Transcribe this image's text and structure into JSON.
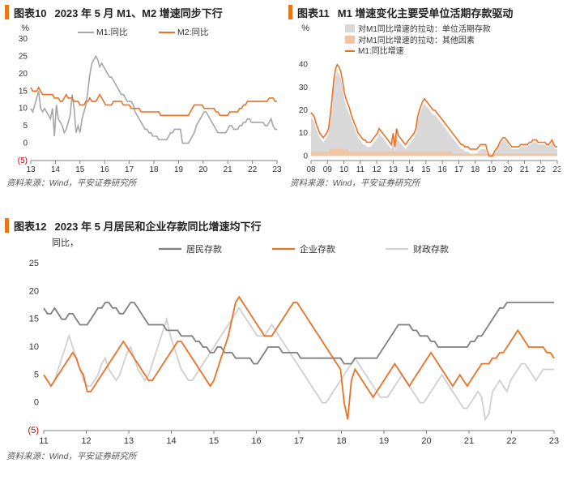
{
  "colors": {
    "orange": "#ea7125",
    "gray": "#a6a6a6",
    "lightgray": "#d0d0d0",
    "axis": "#808080",
    "text": "#333333",
    "red": "#c00000",
    "fillGray": "#d9d9d9",
    "fillPeach": "#f2c4a0",
    "marker": "#e67817"
  },
  "chart10": {
    "figLabel": "图表10",
    "title": "2023 年 5 月 M1、M2 增速同步下行",
    "yUnit": "%",
    "source": "资料来源：Wind，平安证券研究所",
    "yTicks": [
      -5,
      0,
      5,
      10,
      15,
      20,
      25,
      30
    ],
    "yTickLabels": [
      "(5)",
      "0",
      "5",
      "10",
      "15",
      "20",
      "25",
      "30"
    ],
    "yLim": [
      -5,
      30
    ],
    "xYears": [
      "13",
      "14",
      "15",
      "16",
      "17",
      "18",
      "19",
      "20",
      "21",
      "22",
      "23"
    ],
    "legend": [
      {
        "label": "M1:同比",
        "color": "#a6a6a6"
      },
      {
        "label": "M2:同比",
        "color": "#ea7125"
      }
    ],
    "series": {
      "m1": [
        10,
        9,
        11,
        13,
        15,
        10,
        9,
        10,
        9,
        8,
        7,
        10,
        2,
        11,
        7,
        6,
        5,
        3,
        4,
        6,
        8,
        14,
        10,
        3,
        5,
        3,
        7,
        9,
        11,
        15,
        20,
        23,
        24,
        25,
        24,
        22,
        23,
        22,
        21,
        20,
        19,
        19,
        18,
        17,
        16,
        15,
        14,
        14,
        13,
        12,
        12,
        12,
        11,
        9,
        8,
        7,
        6,
        5,
        4,
        4,
        3,
        3,
        2,
        2,
        2,
        1,
        1,
        1,
        1,
        1,
        2,
        3,
        3,
        4,
        4,
        4,
        4,
        0,
        0,
        0,
        0,
        1,
        2,
        3,
        5,
        6,
        7,
        8,
        9,
        9,
        8,
        7,
        6,
        5,
        4,
        3,
        3,
        3,
        3,
        3,
        4,
        5,
        5,
        4,
        4,
        4,
        5,
        5,
        6,
        6,
        7,
        7,
        6,
        6,
        6,
        6,
        6,
        6,
        6,
        5,
        5,
        6,
        7,
        5,
        4,
        4
      ],
      "m2": [
        16,
        15,
        15,
        15,
        16,
        15,
        14,
        14,
        14,
        14,
        14,
        14,
        13,
        13,
        13,
        12,
        12,
        13,
        14,
        13,
        13,
        13,
        12,
        12,
        12,
        11,
        11,
        11,
        12,
        12,
        13,
        12,
        12,
        12,
        13,
        14,
        13,
        12,
        11,
        11,
        11,
        11,
        12,
        12,
        12,
        12,
        12,
        11,
        11,
        11,
        11,
        10,
        10,
        10,
        10,
        10,
        9,
        9,
        9,
        9,
        9,
        9,
        9,
        9,
        9,
        9,
        8,
        8,
        8,
        8,
        8,
        8,
        8,
        8,
        8,
        8,
        8,
        8,
        8,
        8,
        8,
        9,
        10,
        11,
        11,
        11,
        11,
        11,
        10,
        10,
        10,
        10,
        10,
        10,
        9,
        9,
        8,
        8,
        8,
        8,
        8,
        9,
        9,
        9,
        9,
        9,
        10,
        10,
        11,
        11,
        12,
        12,
        12,
        12,
        12,
        12,
        12,
        12,
        12,
        12,
        12,
        13,
        13,
        13,
        12,
        12
      ]
    }
  },
  "chart11": {
    "figLabel": "图表11",
    "title": "M1 增速变化主要受单位活期存款驱动",
    "yUnit": "%",
    "source": "资料来源：Wind，平安证券研究所",
    "yTicks": [
      0,
      10,
      20,
      30,
      40
    ],
    "yLim": [
      -2,
      42
    ],
    "xYears": [
      "08",
      "09",
      "10",
      "11",
      "12",
      "13",
      "14",
      "15",
      "16",
      "17",
      "18",
      "19",
      "20",
      "21",
      "22",
      "23"
    ],
    "legend": [
      {
        "label": "对M1同比增速的拉动：单位活期存款",
        "type": "box",
        "color": "#d9d9d9"
      },
      {
        "label": "对M1同比增速的拉动：其他因素",
        "type": "box",
        "color": "#f2c4a0"
      },
      {
        "label": "M1:同比增速",
        "type": "line",
        "color": "#ea7125"
      }
    ],
    "series": {
      "unitDemand": [
        17,
        16,
        15,
        12,
        10,
        8,
        7,
        6,
        7,
        8,
        10,
        15,
        22,
        30,
        35,
        37,
        36,
        34,
        30,
        25,
        22,
        20,
        18,
        16,
        14,
        12,
        10,
        8,
        7,
        6,
        5,
        5,
        4,
        4,
        4,
        5,
        6,
        7,
        8,
        10,
        9,
        8,
        7,
        6,
        5,
        4,
        3,
        8,
        2,
        10,
        7,
        6,
        5,
        4,
        3,
        4,
        5,
        6,
        7,
        8,
        10,
        15,
        18,
        20,
        22,
        23,
        22,
        21,
        20,
        19,
        18,
        18,
        17,
        16,
        15,
        14,
        13,
        12,
        11,
        10,
        9,
        8,
        7,
        6,
        5,
        4,
        3,
        3,
        2,
        2,
        2,
        1,
        1,
        1,
        1,
        1,
        2,
        3,
        3,
        3,
        3,
        0,
        0,
        0,
        0,
        1,
        2,
        3,
        5,
        6,
        7,
        7,
        6,
        5,
        4,
        3,
        3,
        3,
        3,
        3,
        4,
        4,
        4,
        4,
        4,
        5,
        5,
        6,
        6,
        6,
        5,
        5,
        5,
        5,
        5,
        4,
        4,
        5,
        6,
        4,
        3,
        3
      ],
      "other": [
        2,
        2,
        2,
        2,
        2,
        2,
        2,
        2,
        2,
        2,
        2,
        3,
        3,
        3,
        3,
        3,
        3,
        3,
        3,
        3,
        3,
        3,
        2,
        2,
        2,
        2,
        2,
        2,
        2,
        2,
        2,
        2,
        2,
        2,
        2,
        2,
        2,
        2,
        2,
        2,
        2,
        2,
        2,
        2,
        2,
        2,
        2,
        2,
        2,
        2,
        2,
        2,
        2,
        2,
        2,
        2,
        2,
        2,
        2,
        2,
        2,
        2,
        2,
        2,
        2,
        2,
        2,
        2,
        2,
        2,
        2,
        2,
        2,
        2,
        2,
        2,
        2,
        2,
        2,
        2,
        2,
        1,
        1,
        1,
        1,
        1,
        1,
        1,
        1,
        1,
        1,
        1,
        1,
        1,
        1,
        1,
        1,
        1,
        1,
        1,
        1,
        1,
        1,
        1,
        1,
        1,
        1,
        1,
        1,
        1,
        1,
        1,
        1,
        1,
        1,
        1,
        1,
        1,
        1,
        1,
        1,
        1,
        1,
        1,
        1,
        1,
        1,
        1,
        1,
        1,
        1,
        1,
        1,
        1,
        1,
        1,
        1,
        1,
        1,
        1,
        1,
        1
      ],
      "m1": [
        19,
        18,
        17,
        14,
        12,
        10,
        9,
        8,
        9,
        10,
        12,
        18,
        25,
        33,
        38,
        40,
        39,
        37,
        33,
        28,
        25,
        23,
        21,
        18,
        16,
        14,
        12,
        10,
        9,
        8,
        7,
        7,
        6,
        6,
        6,
        7,
        8,
        9,
        10,
        12,
        11,
        10,
        9,
        8,
        7,
        6,
        5,
        10,
        4,
        12,
        9,
        8,
        7,
        6,
        5,
        6,
        7,
        8,
        9,
        10,
        12,
        17,
        20,
        22,
        24,
        25,
        24,
        23,
        22,
        21,
        20,
        20,
        19,
        18,
        17,
        16,
        15,
        14,
        13,
        12,
        11,
        10,
        9,
        8,
        7,
        6,
        5,
        5,
        4,
        4,
        4,
        3,
        3,
        3,
        3,
        3,
        4,
        5,
        5,
        5,
        5,
        2,
        0,
        0,
        0,
        2,
        3,
        4,
        6,
        7,
        8,
        8,
        7,
        6,
        5,
        4,
        4,
        4,
        4,
        4,
        5,
        5,
        5,
        5,
        5,
        6,
        6,
        7,
        7,
        7,
        6,
        6,
        6,
        6,
        6,
        5,
        5,
        6,
        7,
        5,
        4,
        4
      ]
    }
  },
  "chart12": {
    "figLabel": "图表12",
    "title": "2023 年 5 月居民和企业存款同比增速均下行",
    "yUnit": "同比，",
    "source": "资料来源：Wind，平安证券研究所",
    "yTicks": [
      -5,
      0,
      5,
      10,
      15,
      20,
      25
    ],
    "yTickLabels": [
      "(5)",
      "0",
      "5",
      "10",
      "15",
      "20",
      "25"
    ],
    "yLim": [
      -5,
      25
    ],
    "xYears": [
      "11",
      "12",
      "13",
      "14",
      "15",
      "16",
      "17",
      "18",
      "19",
      "20",
      "21",
      "22",
      "23"
    ],
    "legend": [
      {
        "label": "居民存款",
        "color": "#7f7f7f"
      },
      {
        "label": "企业存款",
        "color": "#ea7125"
      },
      {
        "label": "财政存款",
        "color": "#d0d0d0"
      }
    ],
    "series": {
      "household": [
        17,
        16,
        16,
        17,
        16,
        15,
        15,
        16,
        16,
        15,
        14,
        14,
        14,
        15,
        16,
        17,
        17,
        18,
        18,
        17,
        17,
        16,
        16,
        17,
        18,
        18,
        17,
        16,
        15,
        14,
        14,
        14,
        14,
        14,
        13,
        13,
        13,
        13,
        12,
        12,
        12,
        12,
        11,
        11,
        10,
        10,
        9,
        9,
        10,
        10,
        9,
        9,
        9,
        8,
        8,
        8,
        8,
        8,
        7,
        7,
        8,
        9,
        10,
        10,
        10,
        10,
        9,
        9,
        9,
        9,
        9,
        8,
        8,
        8,
        8,
        8,
        8,
        8,
        8,
        8,
        8,
        8,
        8,
        7,
        7,
        7,
        8,
        8,
        8,
        8,
        8,
        8,
        8,
        9,
        10,
        11,
        12,
        13,
        14,
        14,
        14,
        14,
        13,
        13,
        12,
        12,
        12,
        11,
        11,
        10,
        10,
        10,
        10,
        10,
        10,
        10,
        10,
        10,
        11,
        11,
        12,
        12,
        13,
        14,
        15,
        16,
        17,
        17,
        18,
        18,
        18,
        18,
        18,
        18,
        18,
        18,
        18,
        18,
        18,
        18,
        18,
        18
      ],
      "corporate": [
        5,
        4,
        3,
        4,
        5,
        6,
        7,
        8,
        9,
        8,
        6,
        5,
        2,
        2,
        3,
        4,
        5,
        6,
        7,
        8,
        9,
        10,
        11,
        10,
        9,
        8,
        7,
        6,
        5,
        4,
        4,
        5,
        6,
        7,
        8,
        9,
        10,
        11,
        11,
        10,
        9,
        8,
        7,
        6,
        5,
        4,
        3,
        4,
        6,
        8,
        10,
        12,
        15,
        18,
        19,
        18,
        17,
        16,
        15,
        14,
        13,
        12,
        12,
        12,
        13,
        14,
        15,
        16,
        17,
        18,
        18,
        17,
        16,
        15,
        14,
        13,
        12,
        11,
        10,
        9,
        8,
        7,
        6,
        0,
        -3,
        4,
        6,
        5,
        4,
        3,
        2,
        1,
        2,
        3,
        4,
        5,
        6,
        7,
        6,
        5,
        4,
        3,
        4,
        5,
        6,
        7,
        8,
        9,
        8,
        7,
        6,
        5,
        4,
        3,
        4,
        5,
        4,
        3,
        4,
        5,
        6,
        7,
        7,
        7,
        8,
        8,
        9,
        9,
        10,
        11,
        12,
        13,
        12,
        11,
        10,
        10,
        10,
        10,
        10,
        9,
        9,
        8
      ],
      "fiscal": [
        5,
        4,
        3,
        4,
        6,
        8,
        10,
        12,
        10,
        8,
        6,
        4,
        3,
        3,
        4,
        5,
        7,
        8,
        6,
        5,
        4,
        5,
        7,
        9,
        10,
        8,
        6,
        5,
        4,
        5,
        7,
        9,
        11,
        13,
        15,
        12,
        10,
        8,
        6,
        5,
        4,
        4,
        5,
        6,
        7,
        8,
        9,
        10,
        11,
        12,
        13,
        14,
        15,
        16,
        17,
        16,
        15,
        14,
        13,
        12,
        12,
        12,
        13,
        14,
        13,
        12,
        11,
        10,
        9,
        8,
        7,
        6,
        5,
        4,
        3,
        2,
        1,
        0,
        0,
        1,
        2,
        3,
        4,
        5,
        6,
        7,
        8,
        7,
        6,
        5,
        4,
        3,
        2,
        1,
        1,
        1,
        2,
        3,
        4,
        5,
        4,
        3,
        2,
        1,
        0,
        0,
        1,
        2,
        3,
        4,
        5,
        4,
        3,
        2,
        1,
        0,
        -1,
        -1,
        0,
        1,
        2,
        1,
        -3,
        -2,
        2,
        3,
        4,
        3,
        2,
        4,
        5,
        6,
        7,
        7,
        6,
        5,
        4,
        5,
        6,
        6,
        6,
        6
      ]
    }
  }
}
